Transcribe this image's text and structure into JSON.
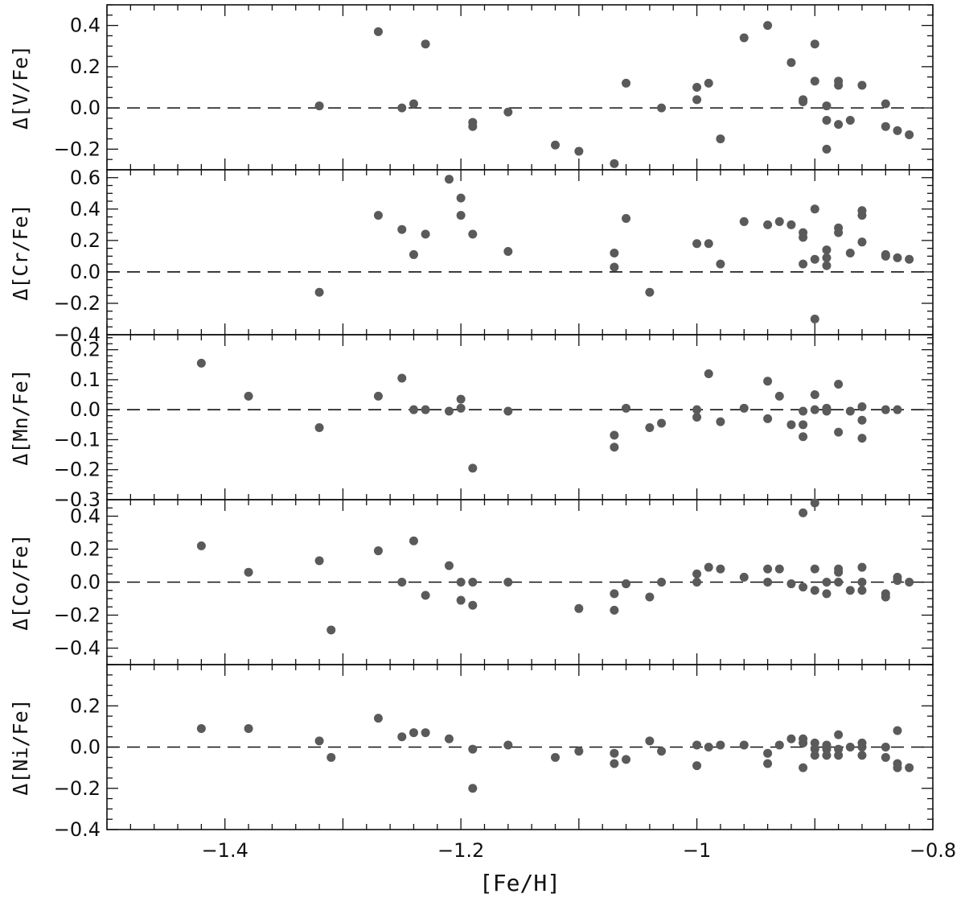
{
  "chart_data": [
    {
      "type": "scatter",
      "ylabel": "Δ[V/Fe]",
      "xlim": [
        -1.5,
        -0.8
      ],
      "ylim": [
        -0.3,
        0.5
      ],
      "yticks": [
        -0.2,
        0.0,
        0.2,
        0.4
      ],
      "ytick_labels": [
        "−0.2",
        "0.0",
        "0.2",
        "0.4"
      ],
      "reference_line": 0,
      "x": [
        -1.32,
        -1.27,
        -1.25,
        -1.24,
        -1.23,
        -1.19,
        -1.19,
        -1.16,
        -1.12,
        -1.1,
        -1.07,
        -1.06,
        -1.03,
        -1.0,
        -1.0,
        -0.99,
        -0.98,
        -0.96,
        -0.94,
        -0.92,
        -0.91,
        -0.91,
        -0.9,
        -0.9,
        -0.89,
        -0.89,
        -0.89,
        -0.88,
        -0.88,
        -0.88,
        -0.87,
        -0.86,
        -0.84,
        -0.84,
        -0.83,
        -0.82
      ],
      "y": [
        0.01,
        0.37,
        0.0,
        0.02,
        0.31,
        -0.07,
        -0.09,
        -0.02,
        -0.18,
        -0.21,
        -0.27,
        0.12,
        0.0,
        0.1,
        0.04,
        0.12,
        -0.15,
        0.34,
        0.4,
        0.22,
        0.04,
        0.03,
        0.31,
        0.13,
        0.01,
        -0.06,
        -0.2,
        0.13,
        0.11,
        -0.08,
        -0.06,
        0.11,
        0.02,
        -0.09,
        -0.11,
        -0.13
      ]
    },
    {
      "type": "scatter",
      "ylabel": "Δ[Cr/Fe]",
      "xlim": [
        -1.5,
        -0.8
      ],
      "ylim": [
        -0.4,
        0.65
      ],
      "yticks": [
        -0.4,
        -0.2,
        0.0,
        0.2,
        0.4,
        0.6
      ],
      "ytick_labels": [
        "−0.4",
        "−0.2",
        "0.0",
        "0.2",
        "0.4",
        "0.6"
      ],
      "reference_line": 0,
      "x": [
        -1.32,
        -1.27,
        -1.25,
        -1.24,
        -1.23,
        -1.21,
        -1.2,
        -1.2,
        -1.19,
        -1.16,
        -1.07,
        -1.07,
        -1.06,
        -1.04,
        -1.0,
        -0.99,
        -0.98,
        -0.96,
        -0.94,
        -0.93,
        -0.92,
        -0.91,
        -0.91,
        -0.91,
        -0.9,
        -0.9,
        -0.9,
        -0.89,
        -0.89,
        -0.89,
        -0.88,
        -0.88,
        -0.87,
        -0.86,
        -0.86,
        -0.86,
        -0.84,
        -0.84,
        -0.83,
        -0.82
      ],
      "y": [
        -0.13,
        0.36,
        0.27,
        0.11,
        0.24,
        0.59,
        0.47,
        0.36,
        0.24,
        0.13,
        0.12,
        0.03,
        0.34,
        -0.13,
        0.18,
        0.18,
        0.05,
        0.32,
        0.3,
        0.32,
        0.3,
        0.25,
        0.22,
        0.05,
        0.4,
        0.08,
        -0.3,
        0.14,
        0.09,
        0.04,
        0.28,
        0.25,
        0.12,
        0.39,
        0.36,
        0.19,
        0.11,
        0.1,
        0.09,
        0.08
      ]
    },
    {
      "type": "scatter",
      "ylabel": "Δ[Mn/Fe]",
      "xlim": [
        -1.5,
        -0.8
      ],
      "ylim": [
        -0.3,
        0.25
      ],
      "yticks": [
        -0.3,
        -0.2,
        -0.1,
        0.0,
        0.1,
        0.2
      ],
      "ytick_labels": [
        "−0.3",
        "−0.2",
        "−0.1",
        "0.0",
        "0.1",
        "0.2"
      ],
      "reference_line": 0,
      "x": [
        -1.42,
        -1.38,
        -1.32,
        -1.27,
        -1.25,
        -1.24,
        -1.23,
        -1.21,
        -1.2,
        -1.2,
        -1.19,
        -1.16,
        -1.07,
        -1.07,
        -1.06,
        -1.04,
        -1.03,
        -1.0,
        -1.0,
        -0.99,
        -0.98,
        -0.96,
        -0.94,
        -0.94,
        -0.93,
        -0.92,
        -0.91,
        -0.91,
        -0.91,
        -0.9,
        -0.9,
        -0.89,
        -0.89,
        -0.88,
        -0.88,
        -0.87,
        -0.86,
        -0.86,
        -0.86,
        -0.84,
        -0.83
      ],
      "y": [
        0.155,
        0.045,
        -0.06,
        0.045,
        0.105,
        0.0,
        0.0,
        -0.005,
        0.035,
        0.005,
        -0.195,
        -0.005,
        -0.085,
        -0.125,
        0.005,
        -0.06,
        -0.045,
        0.0,
        -0.025,
        0.12,
        -0.04,
        0.005,
        0.095,
        -0.03,
        0.045,
        -0.05,
        -0.005,
        -0.05,
        -0.09,
        0.05,
        0.0,
        0.005,
        -0.005,
        0.085,
        -0.075,
        -0.005,
        0.01,
        -0.035,
        -0.095,
        0.0,
        0.0
      ]
    },
    {
      "type": "scatter",
      "ylabel": "Δ[Co/Fe]",
      "xlim": [
        -1.5,
        -0.8
      ],
      "ylim": [
        -0.5,
        0.5
      ],
      "yticks": [
        -0.4,
        -0.2,
        0.0,
        0.2,
        0.4
      ],
      "ytick_labels": [
        "−0.4",
        "−0.2",
        "0.0",
        "0.2",
        "0.4"
      ],
      "reference_line": 0,
      "x": [
        -1.42,
        -1.38,
        -1.32,
        -1.31,
        -1.27,
        -1.25,
        -1.24,
        -1.23,
        -1.21,
        -1.2,
        -1.2,
        -1.19,
        -1.19,
        -1.16,
        -1.1,
        -1.07,
        -1.07,
        -1.06,
        -1.04,
        -1.03,
        -1.0,
        -1.0,
        -0.99,
        -0.98,
        -0.96,
        -0.94,
        -0.94,
        -0.93,
        -0.92,
        -0.91,
        -0.91,
        -0.9,
        -0.9,
        -0.9,
        -0.89,
        -0.89,
        -0.88,
        -0.88,
        -0.88,
        -0.87,
        -0.86,
        -0.86,
        -0.86,
        -0.84,
        -0.84,
        -0.83,
        -0.83,
        -0.82
      ],
      "y": [
        0.22,
        0.06,
        0.13,
        -0.29,
        0.19,
        0.0,
        0.25,
        -0.08,
        0.1,
        0.0,
        -0.11,
        0.0,
        -0.14,
        0.0,
        -0.16,
        -0.07,
        -0.17,
        -0.01,
        -0.09,
        0.0,
        0.05,
        0.0,
        0.09,
        0.08,
        0.03,
        0.08,
        0.0,
        0.08,
        -0.01,
        0.42,
        -0.03,
        0.48,
        0.08,
        -0.05,
        0.0,
        -0.07,
        0.08,
        0.06,
        0.0,
        -0.05,
        0.09,
        0.0,
        -0.05,
        -0.07,
        -0.09,
        0.03,
        0.01,
        0.0
      ]
    },
    {
      "type": "scatter",
      "ylabel": "Δ[Ni/Fe]",
      "xlabel": "[Fe/H]",
      "xlim": [
        -1.5,
        -0.8
      ],
      "ylim": [
        -0.4,
        0.4
      ],
      "yticks": [
        -0.4,
        -0.2,
        0.0,
        0.2
      ],
      "ytick_labels": [
        "−0.4",
        "−0.2",
        "0.0",
        "0.2"
      ],
      "xticks": [
        -1.4,
        -1.2,
        -1.0,
        -0.8
      ],
      "xtick_labels": [
        "−1.4",
        "−1.2",
        "−1",
        "−0.8"
      ],
      "reference_line": 0,
      "x": [
        -1.42,
        -1.38,
        -1.32,
        -1.31,
        -1.27,
        -1.25,
        -1.24,
        -1.23,
        -1.21,
        -1.19,
        -1.19,
        -1.16,
        -1.12,
        -1.1,
        -1.07,
        -1.07,
        -1.06,
        -1.04,
        -1.03,
        -1.0,
        -1.0,
        -0.99,
        -0.98,
        -0.96,
        -0.94,
        -0.94,
        -0.93,
        -0.92,
        -0.91,
        -0.91,
        -0.91,
        -0.9,
        -0.9,
        -0.9,
        -0.89,
        -0.89,
        -0.89,
        -0.88,
        -0.88,
        -0.88,
        -0.87,
        -0.86,
        -0.86,
        -0.86,
        -0.84,
        -0.84,
        -0.83,
        -0.83,
        -0.83,
        -0.82
      ],
      "y": [
        0.09,
        0.09,
        0.03,
        -0.05,
        0.14,
        0.05,
        0.07,
        0.07,
        0.04,
        -0.01,
        -0.2,
        0.01,
        -0.05,
        -0.02,
        -0.03,
        -0.08,
        -0.06,
        0.03,
        -0.02,
        0.01,
        -0.09,
        0.0,
        0.01,
        0.01,
        -0.03,
        -0.08,
        0.01,
        0.04,
        0.04,
        0.02,
        -0.1,
        0.02,
        -0.01,
        -0.04,
        0.01,
        -0.01,
        -0.04,
        0.06,
        -0.01,
        -0.04,
        0.0,
        0.02,
        0.0,
        -0.04,
        0.0,
        -0.05,
        0.08,
        -0.08,
        -0.1,
        -0.1
      ]
    }
  ]
}
